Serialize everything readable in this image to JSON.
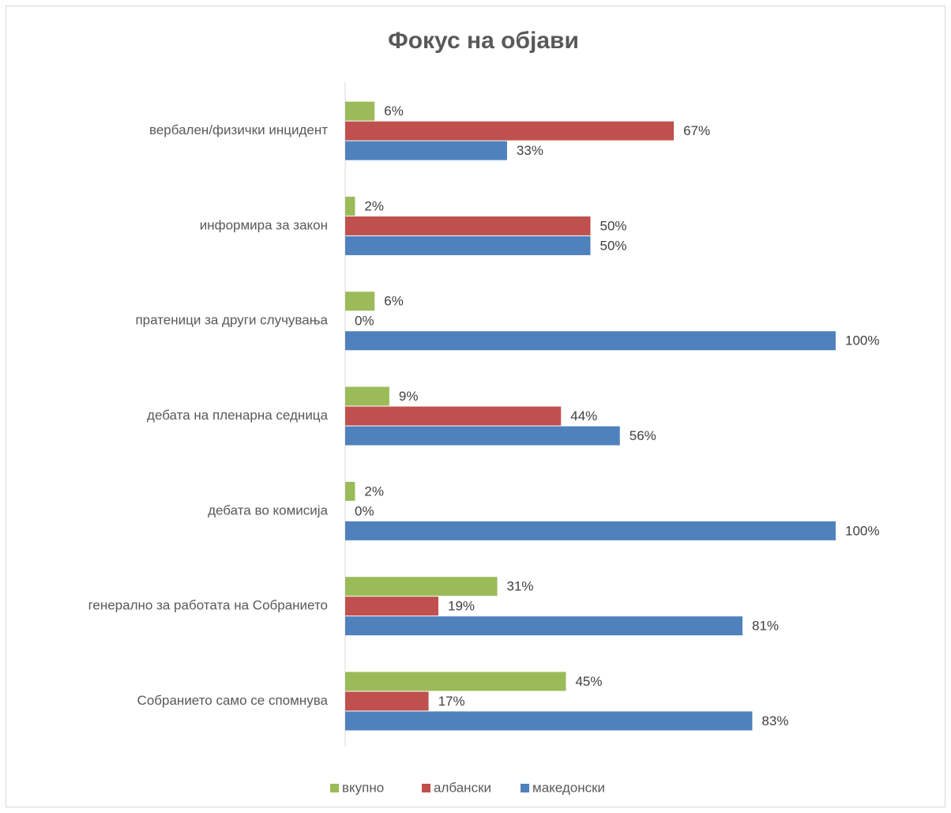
{
  "chart_data": {
    "type": "bar",
    "orientation": "horizontal",
    "title": "Фокус на објави",
    "categories": [
      "вербален/физички инцидент",
      "информира за закон",
      "пратеници за други случувања",
      "дебата на пленарна седница",
      "дебата во комисија",
      "генерално за работата на Собранието",
      "Собранието само се спомнува"
    ],
    "series": [
      {
        "name": "вкупно",
        "color": "#9bbb59",
        "values": [
          6,
          2,
          6,
          9,
          2,
          31,
          45
        ],
        "value_labels": [
          "6%",
          "2%",
          "6%",
          "9%",
          "2%",
          "31%",
          "45%"
        ]
      },
      {
        "name": "албански",
        "color": "#c0504d",
        "values": [
          67,
          50,
          0,
          44,
          0,
          19,
          17
        ],
        "value_labels": [
          "67%",
          "50%",
          "0%",
          "44%",
          "0%",
          "19%",
          "17%"
        ]
      },
      {
        "name": "македонски",
        "color": "#4f81bd",
        "values": [
          33,
          50,
          100,
          56,
          100,
          81,
          83
        ],
        "value_labels": [
          "33%",
          "50%",
          "100%",
          "56%",
          "100%",
          "81%",
          "83%"
        ]
      }
    ],
    "legend": "bottom"
  }
}
